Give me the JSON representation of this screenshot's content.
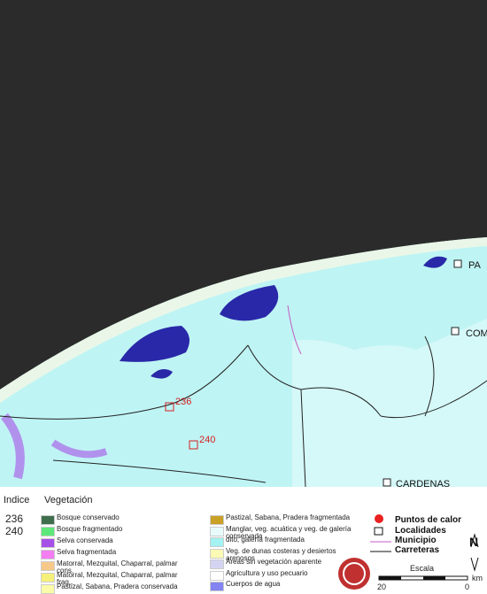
{
  "map": {
    "labels": [
      "236",
      "240",
      "PA",
      "COM",
      "CARDENAS"
    ]
  },
  "legend": {
    "index_header": "Indice",
    "vegetation_header": "Vegetación",
    "index_values": [
      "236",
      "240"
    ],
    "vegetation_left": [
      {
        "label": "Bosque conservado",
        "color": "#3f6e4c"
      },
      {
        "label": "Bosque fragmentado",
        "color": "#5fe87a"
      },
      {
        "label": "Selva conservada",
        "color": "#a650e8"
      },
      {
        "label": "Selva fragmentada",
        "color": "#f27ef2"
      },
      {
        "label": "Matorral, Mezquital, Chaparral, palmar cons.",
        "color": "#f6c98a"
      },
      {
        "label": "Matorral, Mezquital, Chaparral, palmar frag..",
        "color": "#f5f07a"
      },
      {
        "label": "Pastizal, Sabana, Pradera conservada",
        "color": "#fafaa8"
      }
    ],
    "vegetation_right": [
      {
        "label": "Pastizal, Sabana, Pradera fragmentada",
        "color": "#c9a126"
      },
      {
        "label": "Manglar, veg. acuática y veg. de galería conservada",
        "color": "#e8fbfb"
      },
      {
        "label": "dito, galería fragmentada",
        "color": "#a4f2f2"
      },
      {
        "label": "Veg. de dunas costeras y desiertos arenosos",
        "color": "#fafab4"
      },
      {
        "label": "Áreas sin vegetación aparente",
        "color": "#d4d4f2"
      },
      {
        "label": "Agricultura y uso pecuario",
        "color": "#ffffff"
      },
      {
        "label": "Cuerpos de agua",
        "color": "#8383f2"
      }
    ],
    "symbols": [
      "Puntos de calor",
      "Localidades",
      "Municipio",
      "Carreteras"
    ],
    "scale": {
      "title": "Escala",
      "left": "20",
      "unit": "km",
      "right": "0"
    },
    "north": "N"
  }
}
